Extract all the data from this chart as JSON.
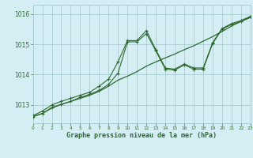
{
  "xlabel": "Graphe pression niveau de la mer (hPa)",
  "background_color": "#d4eef4",
  "grid_color": "#a8cdd4",
  "line_color": "#2d6a2d",
  "xlim": [
    0,
    23
  ],
  "ylim": [
    1012.4,
    1016.3
  ],
  "yticks": [
    1013,
    1014,
    1015,
    1016
  ],
  "xticks": [
    0,
    1,
    2,
    3,
    4,
    5,
    6,
    7,
    8,
    9,
    10,
    11,
    12,
    13,
    14,
    15,
    16,
    17,
    18,
    19,
    20,
    21,
    22,
    23
  ],
  "series1_x": [
    0,
    1,
    2,
    3,
    4,
    5,
    6,
    7,
    8,
    9,
    10,
    11,
    12,
    13,
    14,
    15,
    16,
    17,
    18,
    19,
    20,
    21,
    22,
    23
  ],
  "series1_y": [
    1012.62,
    1012.72,
    1012.9,
    1013.02,
    1013.12,
    1013.22,
    1013.32,
    1013.45,
    1013.62,
    1013.82,
    1013.95,
    1014.1,
    1014.28,
    1014.42,
    1014.55,
    1014.68,
    1014.82,
    1014.95,
    1015.1,
    1015.25,
    1015.42,
    1015.6,
    1015.75,
    1015.88
  ],
  "series2_x": [
    0,
    1,
    2,
    3,
    4,
    5,
    6,
    7,
    8,
    9,
    10,
    11,
    12,
    13,
    14,
    15,
    16,
    17,
    18,
    19,
    20,
    21,
    22,
    23
  ],
  "series2_y": [
    1012.65,
    1012.8,
    1013.0,
    1013.12,
    1013.22,
    1013.32,
    1013.42,
    1013.62,
    1013.85,
    1014.42,
    1015.12,
    1015.12,
    1015.45,
    1014.82,
    1014.22,
    1014.18,
    1014.35,
    1014.22,
    1014.22,
    1015.05,
    1015.52,
    1015.68,
    1015.78,
    1015.92
  ],
  "series3_x": [
    0,
    1,
    2,
    3,
    4,
    5,
    6,
    7,
    8,
    9,
    10,
    11,
    12,
    13,
    14,
    15,
    16,
    17,
    18,
    19,
    20,
    21,
    22,
    23
  ],
  "series3_y": [
    1012.62,
    1012.72,
    1012.92,
    1013.02,
    1013.12,
    1013.25,
    1013.35,
    1013.48,
    1013.68,
    1014.05,
    1015.08,
    1015.08,
    1015.35,
    1014.78,
    1014.18,
    1014.15,
    1014.32,
    1014.18,
    1014.18,
    1015.02,
    1015.5,
    1015.65,
    1015.75,
    1015.9
  ]
}
